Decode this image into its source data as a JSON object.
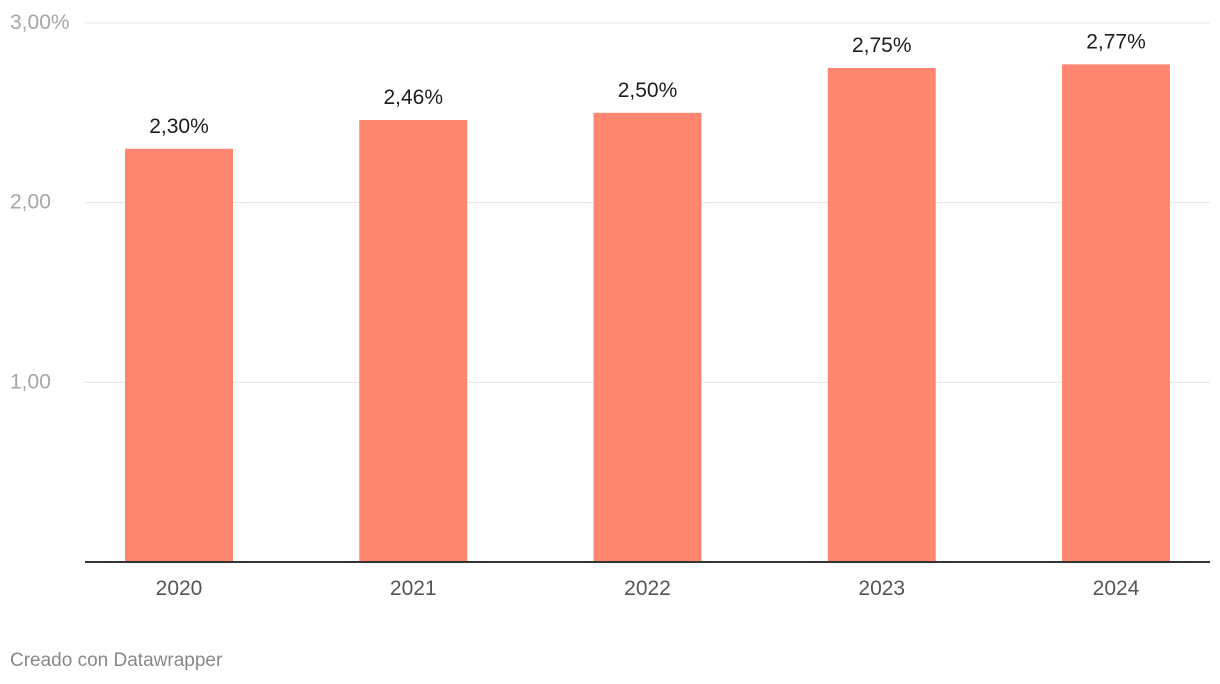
{
  "chart_data": {
    "type": "bar",
    "categories": [
      "2020",
      "2021",
      "2022",
      "2023",
      "2024"
    ],
    "values": [
      2.3,
      2.46,
      2.5,
      2.75,
      2.77
    ],
    "value_labels": [
      "2,30%",
      "2,46%",
      "2,50%",
      "2,75%",
      "2,77%"
    ],
    "yticks": [
      {
        "value": 1,
        "label": "1,00"
      },
      {
        "value": 2,
        "label": "2,00"
      },
      {
        "value": 3,
        "label": "3,00%"
      }
    ],
    "ylim": [
      0,
      3
    ],
    "grid": true,
    "bar_color": "#ff8670",
    "gridline_color": "#e4e4e4",
    "baseline_color": "#333333",
    "tick_label_color": "#a6a6a6",
    "category_label_color": "#555555",
    "value_label_color": "#1d1d1d"
  },
  "footer": {
    "credit": "Creado con Datawrapper"
  }
}
